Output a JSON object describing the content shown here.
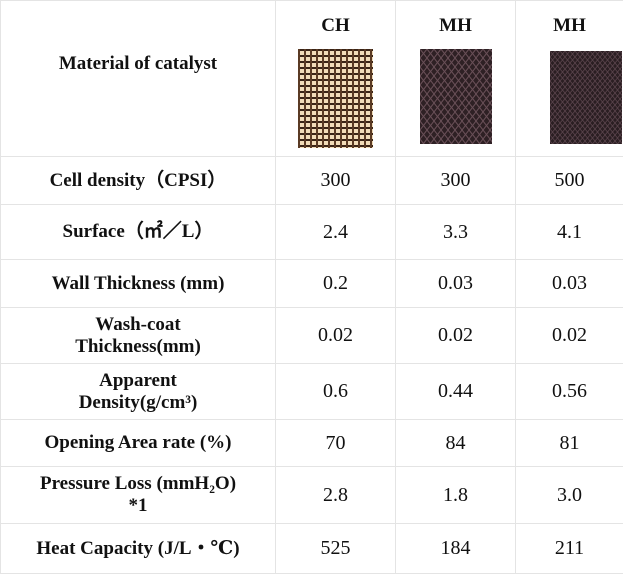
{
  "table": {
    "header": {
      "label": "Material of catalyst",
      "columns": [
        "CH",
        "MH",
        "MH"
      ]
    },
    "rows": [
      [
        "Cell density（CPSI）",
        "300",
        "300",
        "500"
      ],
      [
        "Surface（㎡／L）",
        "2.4",
        "3.3",
        "4.1"
      ],
      [
        "Wall Thickness (mm)",
        "0.2",
        "0.03",
        "0.03"
      ],
      [
        "Wash-coat\nThickness(mm)",
        "0.02",
        "0.02",
        "0.02"
      ],
      [
        "Apparent\nDensity(g/cm³)",
        "0.6",
        "0.44",
        "0.56"
      ],
      [
        "Opening Area rate (%)",
        "70",
        "84",
        "81"
      ],
      [
        "Pressure Loss (mmH₂O)\n*1",
        "2.8",
        "1.8",
        "3.0"
      ],
      [
        "Heat Capacity (J/L・℃)",
        "525",
        "184",
        "211"
      ]
    ]
  }
}
